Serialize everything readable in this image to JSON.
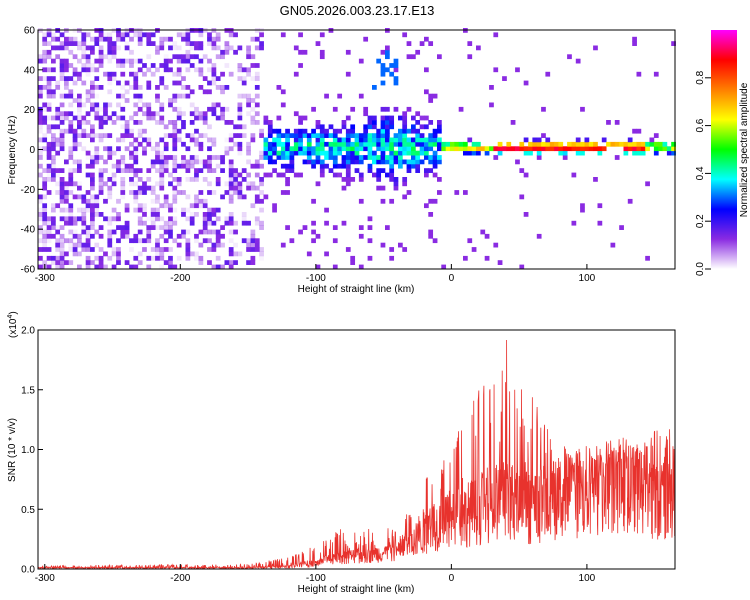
{
  "title": "GN05.2026.003.23.17.E13",
  "chart_data": [
    {
      "type": "heatmap",
      "xlabel": "Height of straight line (km)",
      "ylabel": "Frequency (Hz)",
      "xlim": [
        -305,
        165
      ],
      "ylim": [
        -60,
        60
      ],
      "x_ticks": [
        "-300",
        "-200",
        "-100",
        "0",
        "100"
      ],
      "x_tick_values": [
        -300,
        -200,
        -100,
        0,
        100
      ],
      "y_ticks": [
        "-60",
        "-40",
        "-20",
        "0",
        "20",
        "40",
        "60"
      ],
      "y_tick_values": [
        -60,
        -40,
        -20,
        0,
        20,
        40,
        60
      ],
      "colorbar": {
        "label": "Normalized spectral amplitude",
        "range": [
          0.0,
          1.0
        ],
        "ticks": [
          "0.0",
          "0.2",
          "0.4",
          "0.6",
          "0.8"
        ],
        "tick_values": [
          0.0,
          0.2,
          0.4,
          0.6,
          0.8
        ],
        "colormap": [
          "#ffffff",
          "#8a2be2",
          "#0000ff",
          "#00ffff",
          "#00ff00",
          "#ffff00",
          "#ff7f00",
          "#ff0000",
          "#ff00ff"
        ]
      },
      "regions": [
        {
          "x": [
            -305,
            -140
          ],
          "freq": [
            -60,
            60
          ],
          "amplitude": 0.05,
          "note_color": "#8a2be2"
        },
        {
          "x": [
            -140,
            -10
          ],
          "freq": [
            -15,
            15
          ],
          "amplitude": 0.3
        },
        {
          "x": [
            -10,
            165
          ],
          "freq": [
            -3,
            3
          ],
          "amplitude": 0.9
        }
      ]
    },
    {
      "type": "line",
      "xlabel": "Height of straight line (km)",
      "ylabel": "SNR (10 * v/v)",
      "multiplier": "(x10",
      "multiplier_exp": "4",
      "multiplier_close": ")",
      "xlim": [
        -305,
        165
      ],
      "ylim": [
        0,
        2.0
      ],
      "x_ticks": [
        "-300",
        "-200",
        "-100",
        "0",
        "100"
      ],
      "x_tick_values": [
        -300,
        -200,
        -100,
        0,
        100
      ],
      "y_ticks": [
        "0.0",
        "0.5",
        "1.0",
        "1.5",
        "2.0"
      ],
      "y_tick_values": [
        0.0,
        0.5,
        1.0,
        1.5,
        2.0
      ],
      "color": "#e8322d",
      "envelope": {
        "x": [
          -305,
          -150,
          -120,
          -100,
          -80,
          -60,
          -40,
          -25,
          -15,
          0,
          10,
          20,
          30,
          40,
          50,
          60,
          70,
          80,
          100,
          120,
          140,
          155,
          165
        ],
        "baseline": [
          0.01,
          0.01,
          0.02,
          0.05,
          0.1,
          0.12,
          0.15,
          0.25,
          0.35,
          0.4,
          0.45,
          0.5,
          0.55,
          0.6,
          0.55,
          0.5,
          0.55,
          0.6,
          0.65,
          0.7,
          0.7,
          0.55,
          0.6
        ],
        "peak": [
          0.03,
          0.04,
          0.1,
          0.2,
          0.35,
          0.35,
          0.35,
          0.6,
          0.9,
          1.1,
          1.3,
          1.5,
          1.7,
          2.0,
          1.65,
          1.45,
          1.2,
          1.05,
          1.0,
          1.05,
          1.1,
          1.25,
          1.2
        ]
      }
    }
  ]
}
